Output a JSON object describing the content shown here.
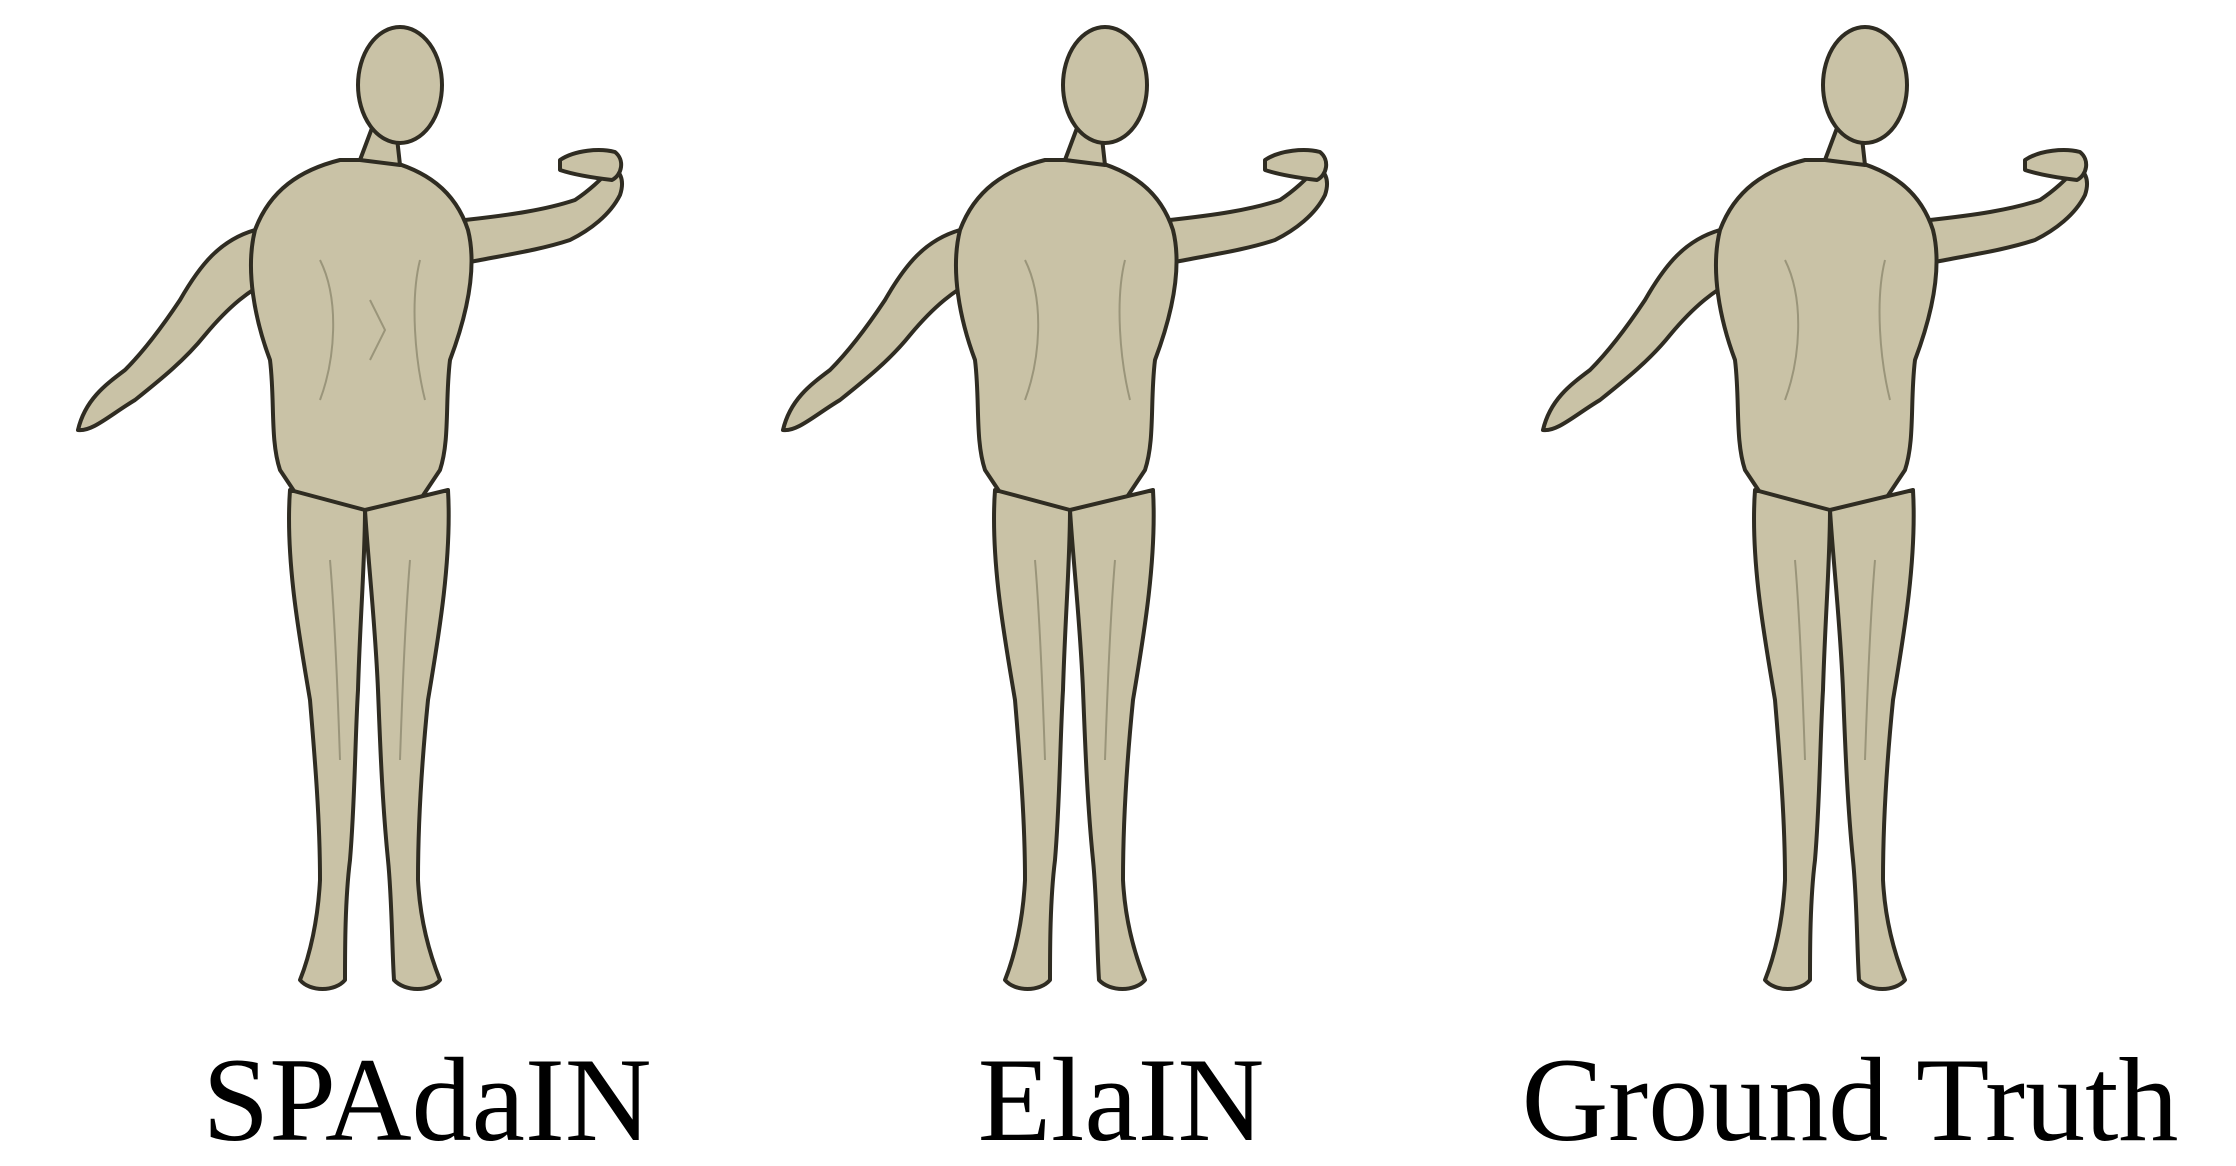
{
  "captions": {
    "left": "SPAdaIN",
    "middle": "ElaIN",
    "right": "Ground Truth"
  },
  "colors": {
    "mesh_fill": "#c9c2a6",
    "mesh_shade": "#8f8a70",
    "mesh_outline": "#2f2c22",
    "background": "#ffffff"
  }
}
